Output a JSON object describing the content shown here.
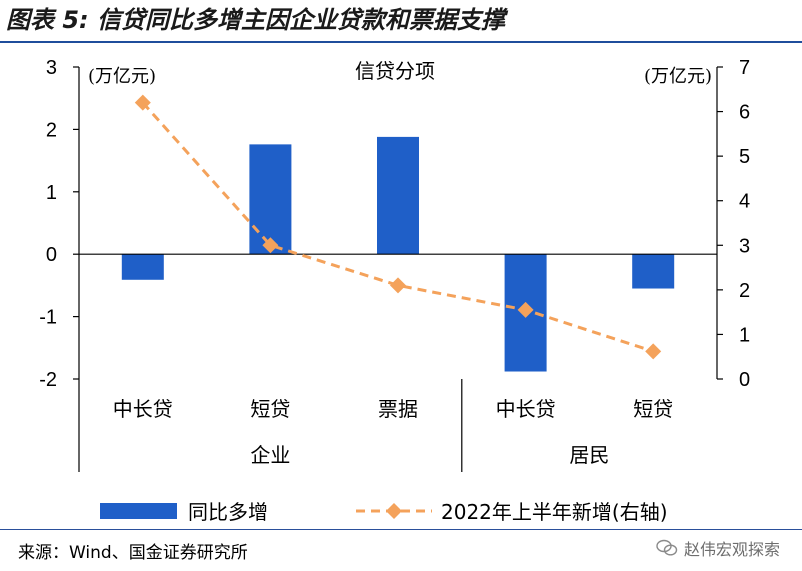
{
  "title": "图表 5:  信贷同比多增主因企业贷款和票据支撑",
  "source": "来源：Wind、国金证券研究所",
  "watermark": "赵伟宏观探索",
  "colors": {
    "bar": "#1f5fc8",
    "line": "#f4a25b",
    "rule": "#1f4e9c"
  },
  "chart_data": {
    "type": "bar+line",
    "title": "信贷分项",
    "left_axis": {
      "unit_label": "(万亿元)",
      "range": [
        -2,
        3
      ],
      "ticks": [
        "3",
        "2",
        "1",
        "0",
        "-1",
        "-2"
      ]
    },
    "right_axis": {
      "unit_label": "(万亿元)",
      "range": [
        0,
        7
      ],
      "ticks": [
        "7",
        "6",
        "5",
        "4",
        "3",
        "2",
        "1",
        "0"
      ]
    },
    "categories": [
      "中长贷",
      "短贷",
      "票据",
      "中长贷",
      "短贷"
    ],
    "groups": [
      {
        "label": "企业",
        "span": [
          0,
          2
        ]
      },
      {
        "label": "居民",
        "span": [
          3,
          4
        ]
      }
    ],
    "series": [
      {
        "name": "同比多增",
        "axis": "left",
        "type": "bar",
        "values": [
          -0.41,
          1.76,
          1.88,
          -1.88,
          -0.55
        ]
      },
      {
        "name": "2022年上半年新增(右轴)",
        "axis": "right",
        "type": "line",
        "style": "dashed",
        "marker": "diamond",
        "values": [
          6.2,
          3.0,
          2.1,
          1.55,
          0.62
        ]
      }
    ],
    "legend": [
      "同比多增",
      "2022年上半年新增(右轴)"
    ]
  }
}
